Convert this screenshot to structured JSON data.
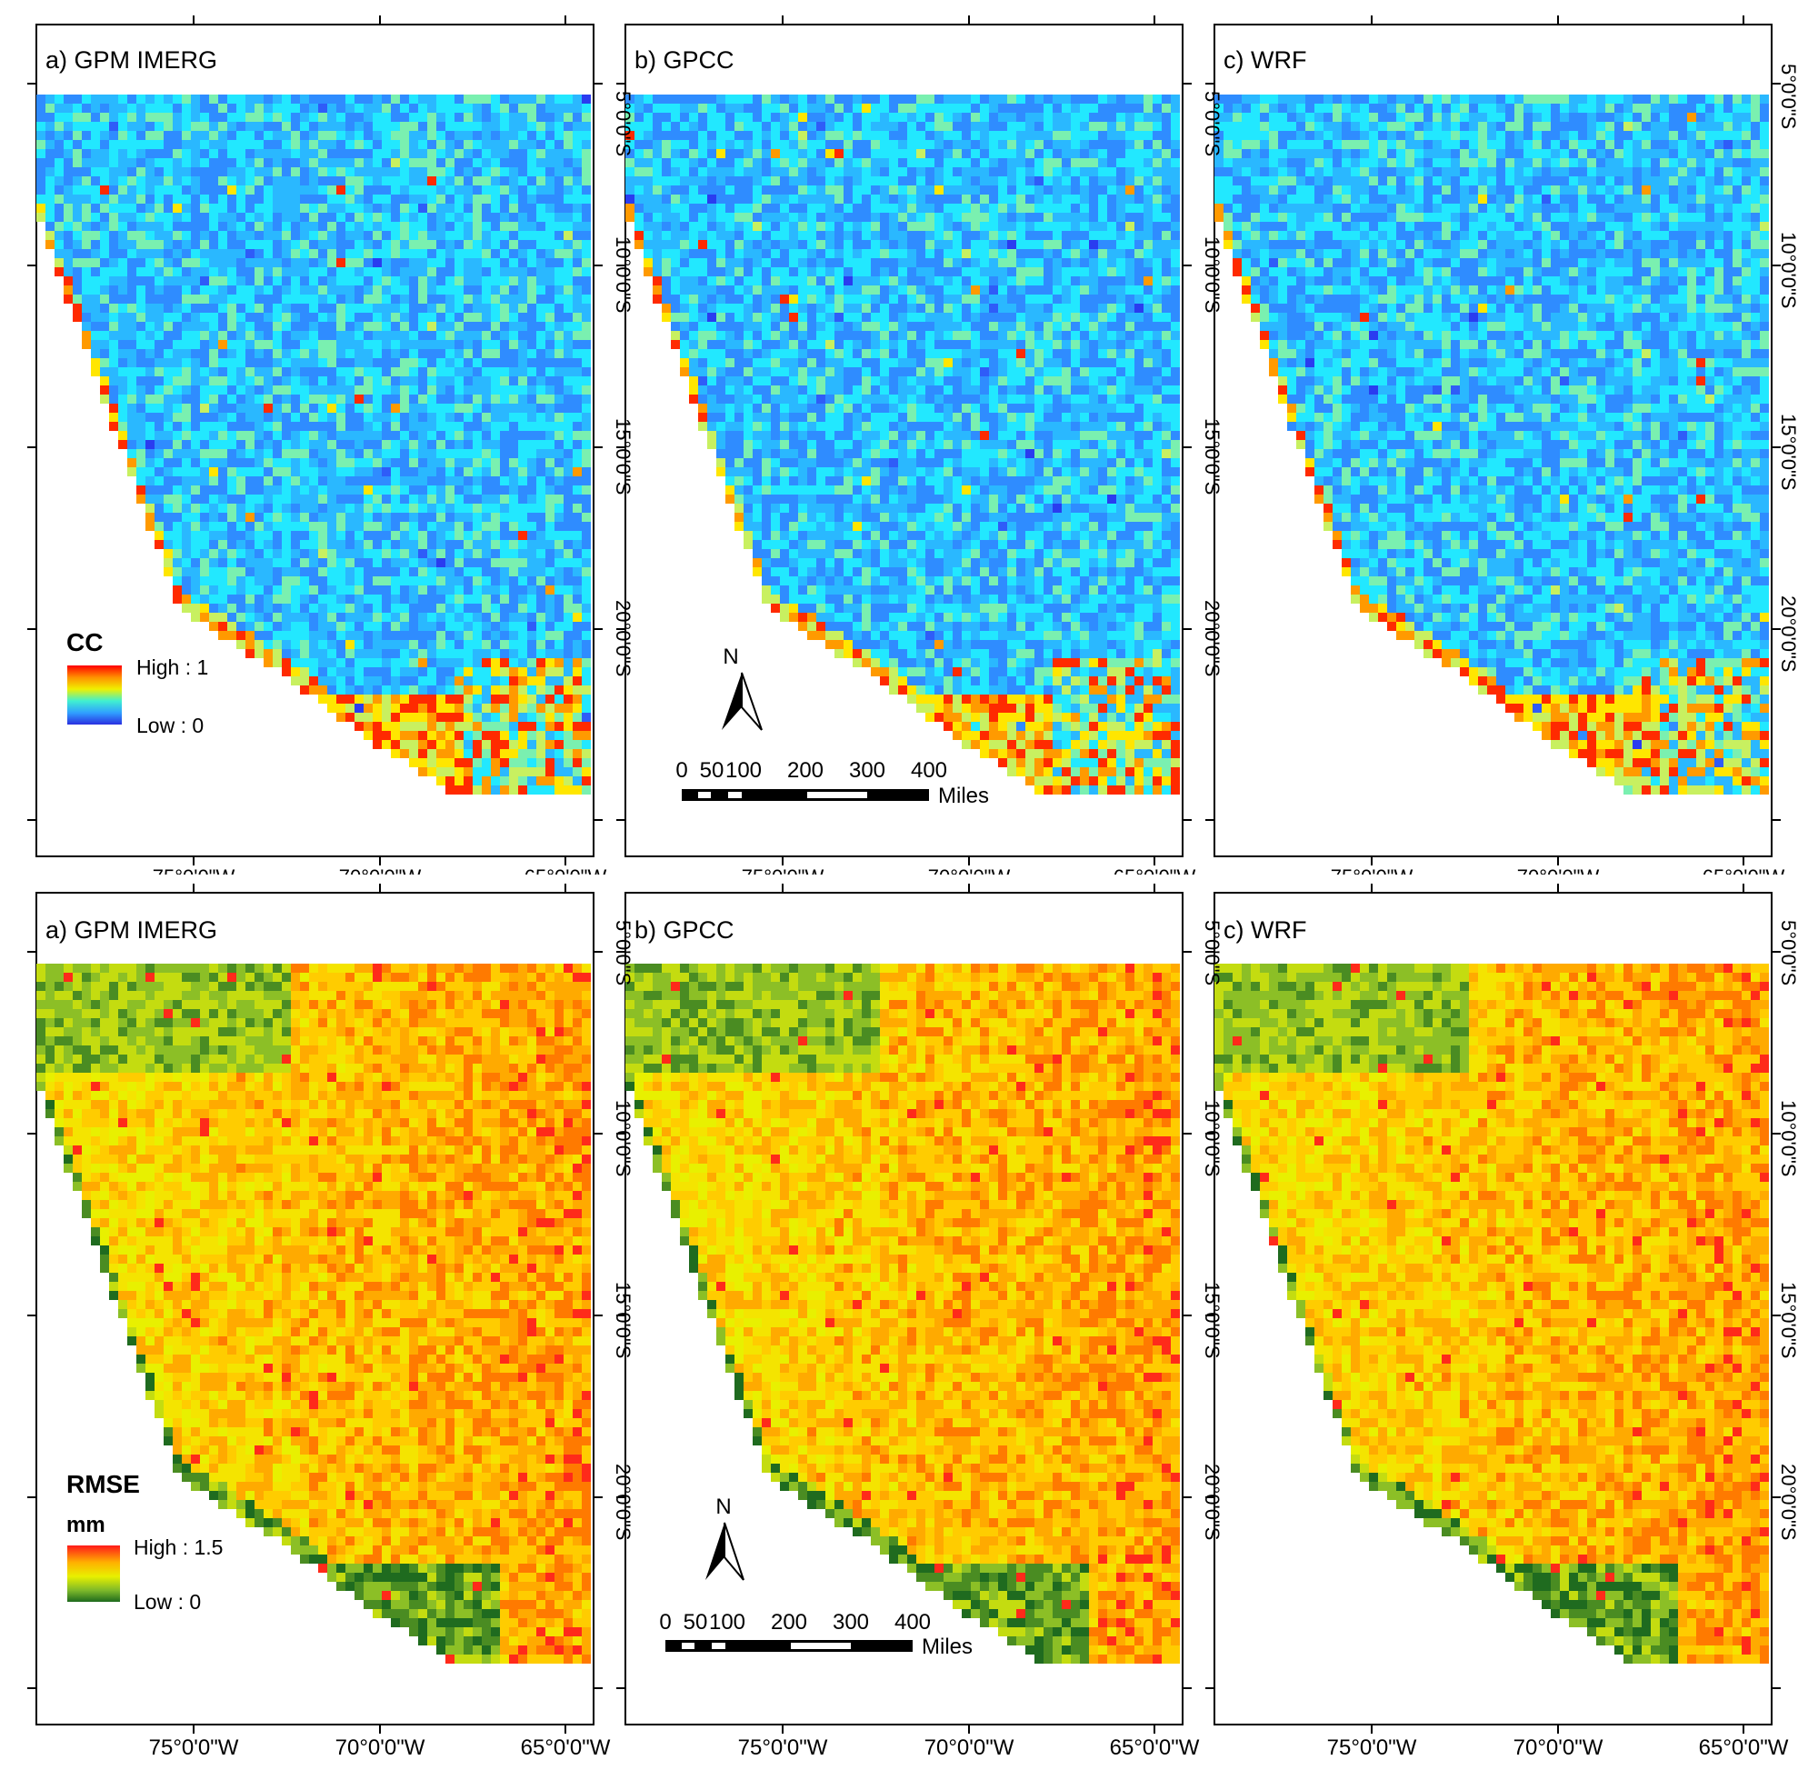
{
  "panels_row1": [
    {
      "title": "a) GPM IMERG"
    },
    {
      "title": "b) GPCC"
    },
    {
      "title": "c) WRF"
    }
  ],
  "panels_row2": [
    {
      "title": "a) GPM IMERG"
    },
    {
      "title": "b) GPCC"
    },
    {
      "title": "c) WRF"
    }
  ],
  "lat_labels": [
    "5°0'0\"S",
    "10°0'0\"S",
    "15°0'0\"S",
    "20°0'0\"S"
  ],
  "lon_labels": [
    "75°0'0\"W",
    "70°0'0\"W",
    "65°0'0\"W"
  ],
  "legend_cc": {
    "title": "CC",
    "high": "High : 1",
    "low": "Low : 0"
  },
  "legend_rmse": {
    "title": "RMSE",
    "unit": "mm",
    "high": "High : 1.5",
    "low": "Low : 0"
  },
  "scalebar": {
    "ticks": [
      "0",
      "50",
      "100",
      "200",
      "300",
      "400"
    ],
    "unit": "Miles"
  },
  "north_arrow": {
    "label": "N"
  },
  "colors": {
    "cc_ramp": [
      "#2a3cf0",
      "#2f8cff",
      "#22e8ff",
      "#a8f07a",
      "#ffe600",
      "#ff7a00",
      "#ff0000"
    ],
    "rmse_ramp": [
      "#1f6b1f",
      "#8cbf26",
      "#e8f000",
      "#ffcc00",
      "#ff8a00",
      "#ff0000"
    ]
  }
}
